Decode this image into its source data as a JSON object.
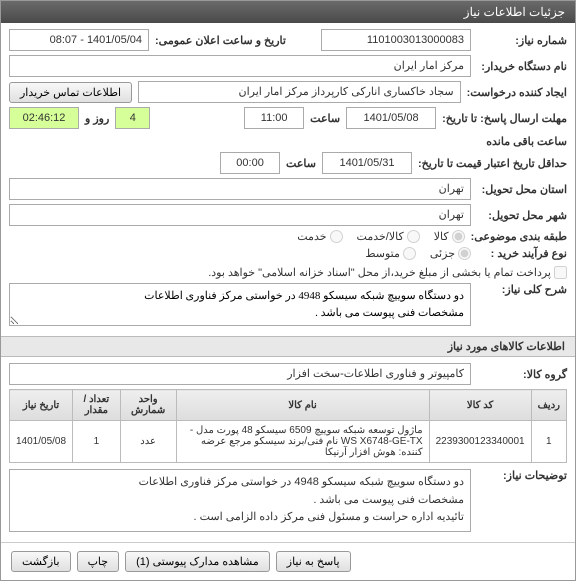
{
  "header": {
    "title": "جزئیات اطلاعات نیاز"
  },
  "form": {
    "need_number_label": "شماره نیاز:",
    "need_number": "1101003013000083",
    "announce_label": "تاریخ و ساعت اعلان عمومی:",
    "announce_value": "1401/05/04 - 08:07",
    "buyer_label": "نام دستگاه خریدار:",
    "buyer": "مرکز امار ایران",
    "creator_label": "ایجاد کننده درخواست:",
    "creator": "سجاد خاکساری انارکی کارپرداز مرکز امار ایران",
    "contact_btn": "اطلاعات تماس خریدار",
    "deadline_label": "مهلت ارسال پاسخ: تا تاریخ:",
    "deadline_date": "1401/05/08",
    "time_label": "ساعت",
    "deadline_time": "11:00",
    "days_left": "4",
    "days_and_label": "روز و",
    "time_left": "02:46:12",
    "time_left_label": "ساعت باقی مانده",
    "validity_label": "حداقل تاریخ اعتبار قیمت تا تاریخ:",
    "validity_date": "1401/05/31",
    "validity_time": "00:00",
    "loc_label": "استان محل تحویل:",
    "loc_value": "تهران",
    "city_label": "شهر محل تحویل:",
    "city_value": "تهران",
    "subject_label": "طبقه بندی موضوعی:",
    "subjects": [
      "کالا",
      "کالا/خدمت",
      "خدمت"
    ],
    "subject_selected": 0,
    "process_label": "نوع فرآیند خرید :",
    "processes": [
      "جزئی",
      "متوسط"
    ],
    "process_selected": 0,
    "process_note": "پرداخت تمام یا بخشی از مبلغ خرید،از محل \"اسناد خزانه اسلامی\" خواهد بود.",
    "process_note_checked": false,
    "need_desc_label": "شرح کلی نیاز:",
    "need_desc": "دو دستگاه سوییچ شبکه سیسکو 4948 در خواستی مرکز فناوری اطلاعات\nمشخصات فنی پیوست می باشد .",
    "goods_section_title": "اطلاعات کالاهای مورد نیاز",
    "goods_group_label": "گروه کالا:",
    "goods_group": "کامپیوتر و فناوری اطلاعات-سخت افزار",
    "remarks_label": "توضیحات نیاز:",
    "remarks": "دو دستگاه سوییچ شبکه سیسکو 4948 در خواستی مرکز فناوری اطلاعات\nمشخصات فنی پیوست می باشد .\nتائیدیه اداره حراست و مسئول فنی مرکز داده الزامی است ."
  },
  "table": {
    "columns": [
      "ردیف",
      "کد کالا",
      "نام کالا",
      "واحد شمارش",
      "تعداد / مقدار",
      "تاریخ نیاز"
    ],
    "rows": [
      [
        "1",
        "2239300123340001",
        "ماژول توسعه شبکه سوییچ 6509 سیسکو 48 پورت مدل -WS X6748-GE-TX نام فنی/برند سیسکو مرجع عرضه کننده: هوش افزار آرنیکا",
        "عدد",
        "1",
        "1401/05/08"
      ]
    ]
  },
  "footer": {
    "reply_btn": "پاسخ به نیاز",
    "attach_btn": "مشاهده مدارک پیوستی (1)",
    "print_btn": "چاپ",
    "back_btn": "بازگشت"
  }
}
